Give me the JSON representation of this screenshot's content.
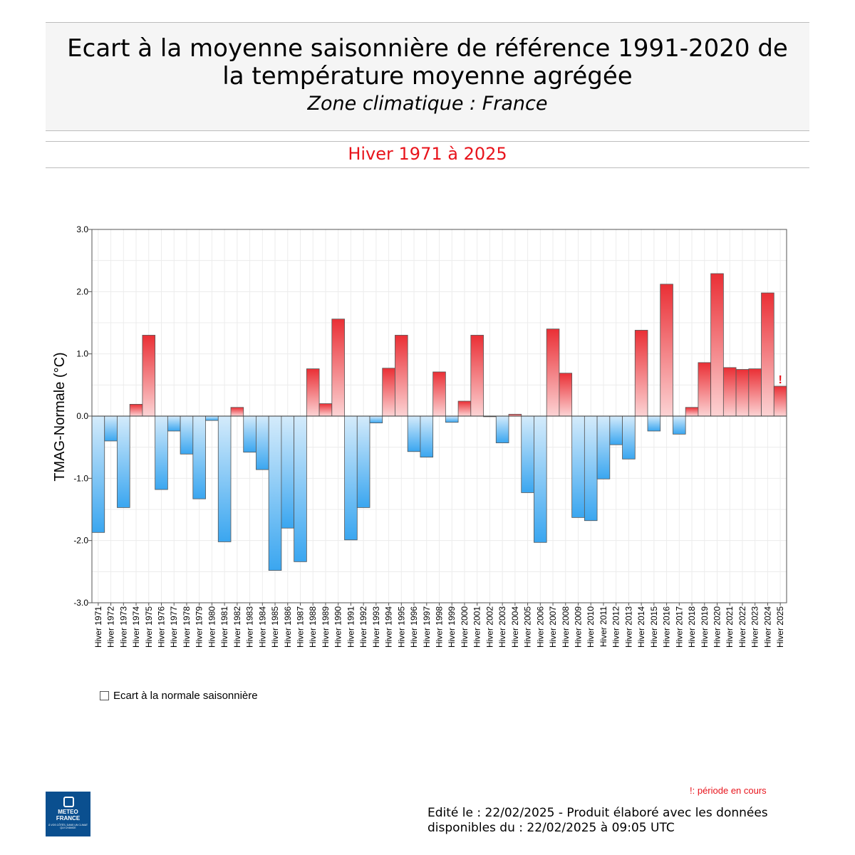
{
  "header": {
    "title_line1": "Ecart à la moyenne saisonnière  de référence 1991-2020  de",
    "title_line2": "la température moyenne  agrégée",
    "subtitle": "Zone climatique : France",
    "period": "Hiver 1971 à 2025"
  },
  "colors": {
    "positive_top": "#ea2f35",
    "positive_bottom": "#fcd3d4",
    "negative_top": "#d4ebfb",
    "negative_bottom": "#3aa6f0",
    "current_marker": "#e8141c"
  },
  "chart_data": {
    "type": "bar",
    "ylabel": "TMAG-Normale (°C)",
    "ylim": [
      -3.0,
      3.0
    ],
    "yticks": [
      -3.0,
      -2.0,
      -1.0,
      0.0,
      1.0,
      2.0,
      3.0
    ],
    "ytick_labels": [
      "-3.0",
      "-2.0",
      "-1.0",
      "0.0",
      "1.0",
      "2.0",
      "3.0"
    ],
    "grid": true,
    "categories": [
      "Hiver 1971",
      "Hiver 1972",
      "Hiver 1973",
      "Hiver 1974",
      "Hiver 1975",
      "Hiver 1976",
      "Hiver 1977",
      "Hiver 1978",
      "Hiver 1979",
      "Hiver 1980",
      "Hiver 1981",
      "Hiver 1982",
      "Hiver 1983",
      "Hiver 1984",
      "Hiver 1985",
      "Hiver 1986",
      "Hiver 1987",
      "Hiver 1988",
      "Hiver 1989",
      "Hiver 1990",
      "Hiver 1991",
      "Hiver 1992",
      "Hiver 1993",
      "Hiver 1994",
      "Hiver 1995",
      "Hiver 1996",
      "Hiver 1997",
      "Hiver 1998",
      "Hiver 1999",
      "Hiver 2000",
      "Hiver 2001",
      "Hiver 2002",
      "Hiver 2003",
      "Hiver 2004",
      "Hiver 2005",
      "Hiver 2006",
      "Hiver 2007",
      "Hiver 2008",
      "Hiver 2009",
      "Hiver 2010",
      "Hiver 2011",
      "Hiver 2012",
      "Hiver 2013",
      "Hiver 2014",
      "Hiver 2015",
      "Hiver 2016",
      "Hiver 2017",
      "Hiver 2018",
      "Hiver 2019",
      "Hiver 2020",
      "Hiver 2021",
      "Hiver 2022",
      "Hiver 2023",
      "Hiver 2024",
      "Hiver 2025"
    ],
    "values": [
      -1.87,
      -0.4,
      -1.47,
      0.19,
      1.3,
      -1.18,
      -0.24,
      -0.61,
      -1.33,
      -0.07,
      -2.02,
      0.14,
      -0.58,
      -0.86,
      -2.48,
      -1.8,
      -2.34,
      0.76,
      0.2,
      1.56,
      -1.99,
      -1.47,
      -0.11,
      0.77,
      1.3,
      -0.57,
      -0.66,
      0.71,
      -0.1,
      0.24,
      1.3,
      -0.01,
      -0.43,
      0.03,
      -1.23,
      -2.03,
      1.4,
      0.69,
      -1.63,
      -1.68,
      -1.01,
      -0.46,
      -0.69,
      1.38,
      -0.24,
      2.12,
      -0.29,
      0.14,
      0.86,
      2.29,
      0.78,
      0.75,
      0.76,
      1.98,
      0.48
    ],
    "current_marker_index": 54,
    "current_marker_symbol": "!",
    "legend": "Ecart à la normale saisonnière",
    "legend_position": "bottom-left"
  },
  "footer": {
    "note": "!: période en cours",
    "edit_line1": "Edité le : 22/02/2025 - Produit élaboré avec les données",
    "edit_line2": "disponibles du : 22/02/2025 à 09:05 UTC",
    "logo_text_line1": "METEO",
    "logo_text_line2": "FRANCE",
    "logo_tagline": "À VOS CÔTÉS, DANS UN CLIMAT QUI CHANGE"
  }
}
